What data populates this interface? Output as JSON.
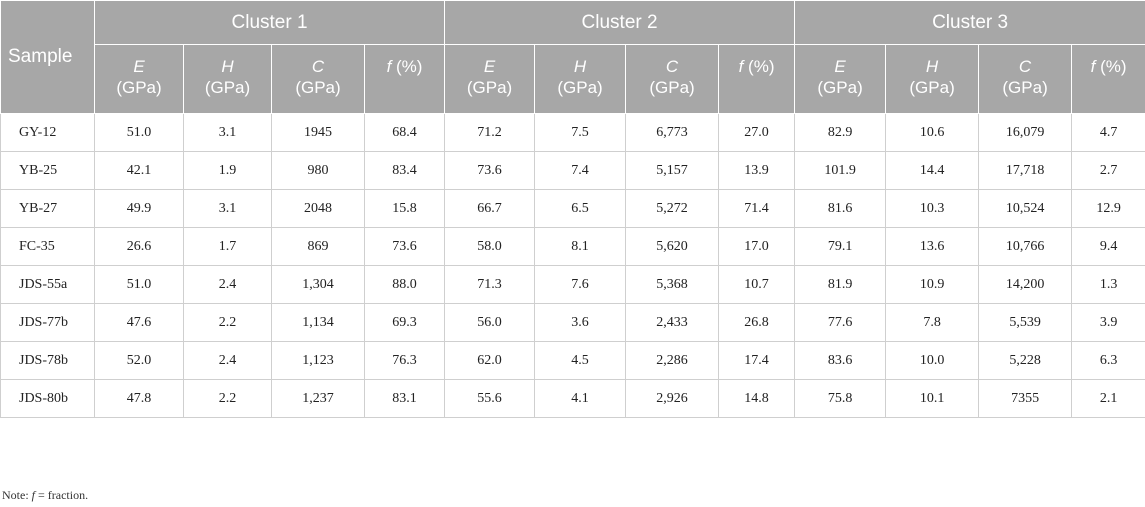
{
  "header": {
    "sample_label": "Sample",
    "clusters": [
      "Cluster 1",
      "Cluster 2",
      "Cluster 3"
    ],
    "columns": [
      {
        "var": "E",
        "unit": "(GPa)"
      },
      {
        "var": "H",
        "unit": "(GPa)"
      },
      {
        "var": "C",
        "unit": "(GPa)"
      },
      {
        "var": "f",
        "unit": " (%)"
      }
    ]
  },
  "rows": [
    {
      "sample": "GY-12",
      "values": [
        "51.0",
        "3.1",
        "1945",
        "68.4",
        "71.2",
        "7.5",
        "6,773",
        "27.0",
        "82.9",
        "10.6",
        "16,079",
        "4.7"
      ]
    },
    {
      "sample": "YB-25",
      "values": [
        "42.1",
        "1.9",
        "980",
        "83.4",
        "73.6",
        "7.4",
        "5,157",
        "13.9",
        "101.9",
        "14.4",
        "17,718",
        "2.7"
      ]
    },
    {
      "sample": "YB-27",
      "values": [
        "49.9",
        "3.1",
        "2048",
        "15.8",
        "66.7",
        "6.5",
        "5,272",
        "71.4",
        "81.6",
        "10.3",
        "10,524",
        "12.9"
      ]
    },
    {
      "sample": "FC-35",
      "values": [
        "26.6",
        "1.7",
        "869",
        "73.6",
        "58.0",
        "8.1",
        "5,620",
        "17.0",
        "79.1",
        "13.6",
        "10,766",
        "9.4"
      ]
    },
    {
      "sample": "JDS-55a",
      "values": [
        "51.0",
        "2.4",
        "1,304",
        "88.0",
        "71.3",
        "7.6",
        "5,368",
        "10.7",
        "81.9",
        "10.9",
        "14,200",
        "1.3"
      ]
    },
    {
      "sample": "JDS-77b",
      "values": [
        "47.6",
        "2.2",
        "1,134",
        "69.3",
        "56.0",
        "3.6",
        "2,433",
        "26.8",
        "77.6",
        "7.8",
        "5,539",
        "3.9"
      ]
    },
    {
      "sample": "JDS-78b",
      "values": [
        "52.0",
        "2.4",
        "1,123",
        "76.3",
        "62.0",
        "4.5",
        "2,286",
        "17.4",
        "83.6",
        "10.0",
        "5,228",
        "6.3"
      ]
    },
    {
      "sample": "JDS-80b",
      "values": [
        "47.8",
        "2.2",
        "1,237",
        "83.1",
        "55.6",
        "4.1",
        "2,926",
        "14.8",
        "75.8",
        "10.1",
        "7355",
        "2.1"
      ]
    }
  ],
  "note": {
    "prefix": "Note: ",
    "symbol": "f",
    "text": " = fraction."
  }
}
